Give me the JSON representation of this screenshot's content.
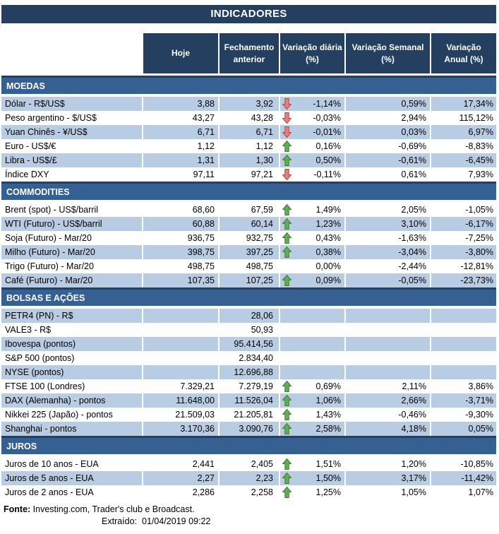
{
  "title": "INDICADORES",
  "columns": [
    "Hoje",
    "Fechamento\nanterior",
    "Variação diária\n(%)",
    "Variação Semanal\n(%)",
    "Variação\nAnual (%)"
  ],
  "colors": {
    "navy": "#243F60",
    "section_blue": "#376092",
    "row_light_blue": "#B8CCE4",
    "arrow_up_green": "#5FAD56",
    "arrow_up_border": "#3E7D33",
    "arrow_down_red": "#E97E7B",
    "arrow_down_border": "#B0463F"
  },
  "sections": [
    {
      "name": "MOEDAS",
      "rows": [
        {
          "label": "Dólar - R$/US$",
          "hoje": "3,88",
          "fechamento": "3,92",
          "arrow": "down",
          "diaria": "-1,14%",
          "semanal": "0,59%",
          "anual": "17,34%"
        },
        {
          "label": "Peso argentino - $/US$",
          "hoje": "43,27",
          "fechamento": "43,28",
          "arrow": "down",
          "diaria": "-0,03%",
          "semanal": "2,94%",
          "anual": "115,12%"
        },
        {
          "label": "Yuan Chinês - ¥/US$",
          "hoje": "6,71",
          "fechamento": "6,71",
          "arrow": "down",
          "diaria": "-0,01%",
          "semanal": "0,03%",
          "anual": "6,97%"
        },
        {
          "label": "Euro - US$/€",
          "hoje": "1,12",
          "fechamento": "1,12",
          "arrow": "up",
          "diaria": "0,16%",
          "semanal": "-0,69%",
          "anual": "-8,83%"
        },
        {
          "label": "Libra - US$/£",
          "hoje": "1,31",
          "fechamento": "1,30",
          "arrow": "up",
          "diaria": "0,50%",
          "semanal": "-0,61%",
          "anual": "-6,45%"
        },
        {
          "label": "Índice DXY",
          "hoje": "97,11",
          "fechamento": "97,21",
          "arrow": "down",
          "diaria": "-0,11%",
          "semanal": "0,61%",
          "anual": "7,93%"
        }
      ]
    },
    {
      "name": "COMMODITIES",
      "rows": [
        {
          "label": "Brent (spot) - US$/barril",
          "hoje": "68,60",
          "fechamento": "67,59",
          "arrow": "up",
          "diaria": "1,49%",
          "semanal": "2,05%",
          "anual": "-1,05%"
        },
        {
          "label": "WTI (Futuro) - US$/barril",
          "hoje": "60,88",
          "fechamento": "60,14",
          "arrow": "up",
          "diaria": "1,23%",
          "semanal": "3,10%",
          "anual": "-6,17%"
        },
        {
          "label": "Soja (Futuro) - Mar/20",
          "hoje": "936,75",
          "fechamento": "932,75",
          "arrow": "up",
          "diaria": "0,43%",
          "semanal": "-1,63%",
          "anual": "-7,25%"
        },
        {
          "label": "Milho (Futuro) - Mar/20",
          "hoje": "398,75",
          "fechamento": "397,25",
          "arrow": "up",
          "diaria": "0,38%",
          "semanal": "-3,04%",
          "anual": "-3,80%"
        },
        {
          "label": "Trigo (Futuro) - Mar/20",
          "hoje": "498,75",
          "fechamento": "498,75",
          "arrow": "none",
          "diaria": "0,00%",
          "semanal": "-2,44%",
          "anual": "-12,81%"
        },
        {
          "label": "Café (Futuro) - Mar/20",
          "hoje": "107,35",
          "fechamento": "107,25",
          "arrow": "up",
          "diaria": "0,09%",
          "semanal": "-0,05%",
          "anual": "-23,73%"
        }
      ]
    },
    {
      "name": "BOLSAS E AÇÕES",
      "rows": [
        {
          "label": "PETR4 (PN) - R$",
          "hoje": "",
          "fechamento": "28,06",
          "arrow": "none",
          "diaria": "",
          "semanal": "",
          "anual": ""
        },
        {
          "label": "VALE3 - R$",
          "hoje": "",
          "fechamento": "50,93",
          "arrow": "none",
          "diaria": "",
          "semanal": "",
          "anual": ""
        },
        {
          "label": "Ibovespa (pontos)",
          "hoje": "",
          "fechamento": "95.414,56",
          "arrow": "none",
          "diaria": "",
          "semanal": "",
          "anual": ""
        },
        {
          "label": "S&P 500 (pontos)",
          "hoje": "",
          "fechamento": "2.834,40",
          "arrow": "none",
          "diaria": "",
          "semanal": "",
          "anual": ""
        },
        {
          "label": "NYSE (pontos)",
          "hoje": "",
          "fechamento": "12.696,88",
          "arrow": "none",
          "diaria": "",
          "semanal": "",
          "anual": ""
        },
        {
          "label": "FTSE 100 (Londres)",
          "hoje": "7.329,21",
          "fechamento": "7.279,19",
          "arrow": "up",
          "diaria": "0,69%",
          "semanal": "2,11%",
          "anual": "3,86%"
        },
        {
          "label": "DAX (Alemanha) - pontos",
          "hoje": "11.648,00",
          "fechamento": "11.526,04",
          "arrow": "up",
          "diaria": "1,06%",
          "semanal": "2,66%",
          "anual": "-3,71%"
        },
        {
          "label": "Nikkei 225 (Japão) - pontos",
          "hoje": "21.509,03",
          "fechamento": "21.205,81",
          "arrow": "up",
          "diaria": "1,43%",
          "semanal": "-0,46%",
          "anual": "-9,30%"
        },
        {
          "label": "Shanghai - pontos",
          "hoje": "3.170,36",
          "fechamento": "3.090,76",
          "arrow": "up",
          "diaria": "2,58%",
          "semanal": "4,18%",
          "anual": "0,05%"
        }
      ]
    },
    {
      "name": "JUROS",
      "rows": [
        {
          "label": "Juros de 10 anos - EUA",
          "hoje": "2,441",
          "fechamento": "2,405",
          "arrow": "up",
          "diaria": "1,51%",
          "semanal": "1,20%",
          "anual": "-10,85%"
        },
        {
          "label": "Juros de 5 anos - EUA",
          "hoje": "2,27",
          "fechamento": "2,23",
          "arrow": "up",
          "diaria": "1,50%",
          "semanal": "3,17%",
          "anual": "-11,42%"
        },
        {
          "label": "Juros de 2 anos - EUA",
          "hoje": "2,286",
          "fechamento": "2,258",
          "arrow": "up",
          "diaria": "1,25%",
          "semanal": "1,05%",
          "anual": "1,07%"
        }
      ]
    }
  ],
  "footer": {
    "fonte_label": "Fonte:",
    "fonte_text": " Investing.com, Trader's club e Broadcast.",
    "extraido_label": "Extraído:",
    "extraido_value": "01/04/2019 09:22"
  }
}
